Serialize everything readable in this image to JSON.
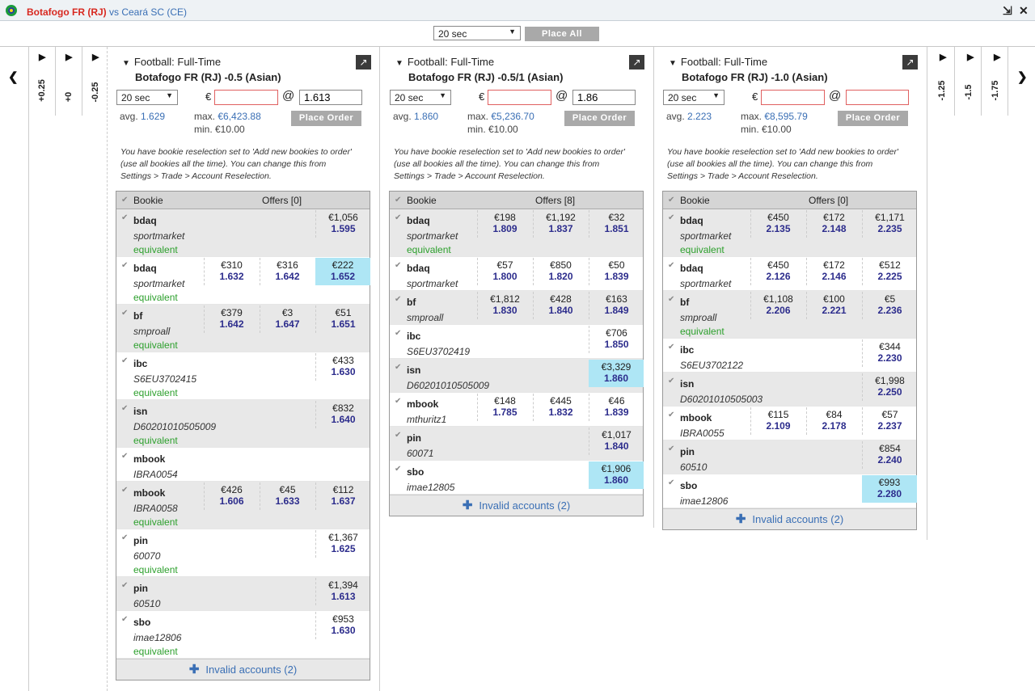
{
  "window": {
    "home_team": "Botafogo FR (RJ)",
    "vs": "vs",
    "away_team": "Ceará SC (CE)"
  },
  "topbar": {
    "interval": "20 sec",
    "place_all": "Place All"
  },
  "left_strip": [
    "+0.25",
    "+0",
    "-0.25"
  ],
  "right_strip": [
    "-1.25",
    "-1.5",
    "-1.75"
  ],
  "panels": [
    {
      "market": "Football: Full-Time",
      "selection": "Botafogo FR (RJ) -0.5 (Asian)",
      "interval": "20 sec",
      "stake": "",
      "odds": "1.613",
      "avg_label": "avg.",
      "avg": "1.629",
      "max_label": "max.",
      "max": "€6,423.88",
      "min": "min. €10.00",
      "place_order": "Place Order",
      "note": [
        "You have bookie reselection set to 'Add new bookies to order'",
        "(use all bookies all the time).  You can change this from",
        "Settings > Trade > Account Reselection."
      ],
      "col_bookie": "Bookie",
      "col_offers": "Offers [0]",
      "invalid": "Invalid accounts (2)",
      "rows": [
        {
          "name": "bdaq",
          "acct": "sportmarket",
          "eq": "equivalent",
          "cells": [
            null,
            null,
            {
              "s": "€1,056",
              "o": "1.595"
            }
          ]
        },
        {
          "name": "bdaq",
          "acct": "sportmarket",
          "eq": "equivalent",
          "cells": [
            {
              "s": "€310",
              "o": "1.632"
            },
            {
              "s": "€316",
              "o": "1.642"
            },
            {
              "s": "€222",
              "o": "1.652",
              "hl": true
            }
          ]
        },
        {
          "name": "bf",
          "acct": "smproall",
          "eq": "equivalent",
          "cells": [
            {
              "s": "€379",
              "o": "1.642"
            },
            {
              "s": "€3",
              "o": "1.647"
            },
            {
              "s": "€51",
              "o": "1.651"
            }
          ]
        },
        {
          "name": "ibc",
          "acct": "S6EU3702415",
          "eq": "equivalent",
          "cells": [
            null,
            null,
            {
              "s": "€433",
              "o": "1.630"
            }
          ]
        },
        {
          "name": "isn",
          "acct": "D60201010505009",
          "eq": "equivalent",
          "cells": [
            null,
            null,
            {
              "s": "€832",
              "o": "1.640"
            }
          ]
        },
        {
          "name": "mbook",
          "acct": "IBRA0054",
          "eq": "",
          "cells": [
            null,
            null,
            null
          ]
        },
        {
          "name": "mbook",
          "acct": "IBRA0058",
          "eq": "equivalent",
          "cells": [
            {
              "s": "€426",
              "o": "1.606"
            },
            {
              "s": "€45",
              "o": "1.633"
            },
            {
              "s": "€112",
              "o": "1.637"
            }
          ]
        },
        {
          "name": "pin",
          "acct": "60070",
          "eq": "equivalent",
          "cells": [
            null,
            null,
            {
              "s": "€1,367",
              "o": "1.625"
            }
          ]
        },
        {
          "name": "pin",
          "acct": "60510",
          "eq": "",
          "cells": [
            null,
            null,
            {
              "s": "€1,394",
              "o": "1.613"
            }
          ]
        },
        {
          "name": "sbo",
          "acct": "imae12806",
          "eq": "equivalent",
          "cells": [
            null,
            null,
            {
              "s": "€953",
              "o": "1.630"
            }
          ]
        }
      ]
    },
    {
      "market": "Football: Full-Time",
      "selection": "Botafogo FR (RJ) -0.5/1 (Asian)",
      "interval": "20 sec",
      "stake": "",
      "odds": "1.86",
      "avg_label": "avg.",
      "avg": "1.860",
      "max_label": "max.",
      "max": "€5,236.70",
      "min": "min. €10.00",
      "place_order": "Place Order",
      "note": [
        "You have bookie reselection set to 'Add new bookies to order'",
        "(use all bookies all the time).  You can change this from",
        "Settings > Trade > Account Reselection."
      ],
      "col_bookie": "Bookie",
      "col_offers": "Offers [8]",
      "invalid": "Invalid accounts (2)",
      "rows": [
        {
          "name": "bdaq",
          "acct": "sportmarket",
          "eq": "equivalent",
          "cells": [
            {
              "s": "€198",
              "o": "1.809"
            },
            {
              "s": "€1,192",
              "o": "1.837"
            },
            {
              "s": "€32",
              "o": "1.851"
            }
          ]
        },
        {
          "name": "bdaq",
          "acct": "sportmarket",
          "eq": "",
          "cells": [
            {
              "s": "€57",
              "o": "1.800"
            },
            {
              "s": "€850",
              "o": "1.820"
            },
            {
              "s": "€50",
              "o": "1.839"
            }
          ]
        },
        {
          "name": "bf",
          "acct": "smproall",
          "eq": "",
          "cells": [
            {
              "s": "€1,812",
              "o": "1.830"
            },
            {
              "s": "€428",
              "o": "1.840"
            },
            {
              "s": "€163",
              "o": "1.849"
            }
          ]
        },
        {
          "name": "ibc",
          "acct": "S6EU3702419",
          "eq": "",
          "cells": [
            null,
            null,
            {
              "s": "€706",
              "o": "1.850"
            }
          ]
        },
        {
          "name": "isn",
          "acct": "D60201010505009",
          "eq": "",
          "cells": [
            null,
            null,
            {
              "s": "€3,329",
              "o": "1.860",
              "hl": true
            }
          ]
        },
        {
          "name": "mbook",
          "acct": "mthuritz1",
          "eq": "",
          "cells": [
            {
              "s": "€148",
              "o": "1.785"
            },
            {
              "s": "€445",
              "o": "1.832"
            },
            {
              "s": "€46",
              "o": "1.839"
            }
          ]
        },
        {
          "name": "pin",
          "acct": "60071",
          "eq": "",
          "cells": [
            null,
            null,
            {
              "s": "€1,017",
              "o": "1.840"
            }
          ]
        },
        {
          "name": "sbo",
          "acct": "imae12805",
          "eq": "",
          "cells": [
            null,
            null,
            {
              "s": "€1,906",
              "o": "1.860",
              "hl": true
            }
          ]
        }
      ]
    },
    {
      "market": "Football: Full-Time",
      "selection": "Botafogo FR (RJ) -1.0 (Asian)",
      "interval": "20 sec",
      "stake": "",
      "odds": "",
      "avg_label": "avg.",
      "avg": "2.223",
      "max_label": "max.",
      "max": "€8,595.79",
      "min": "min. €10.00",
      "place_order": "Place Order",
      "note": [
        "You have bookie reselection set to 'Add new bookies to order'",
        "(use all bookies all the time).  You can change this from",
        "Settings > Trade > Account Reselection."
      ],
      "col_bookie": "Bookie",
      "col_offers": "Offers [0]",
      "invalid": "Invalid accounts (2)",
      "rows": [
        {
          "name": "bdaq",
          "acct": "sportmarket",
          "eq": "equivalent",
          "cells": [
            {
              "s": "€450",
              "o": "2.135"
            },
            {
              "s": "€172",
              "o": "2.148"
            },
            {
              "s": "€1,171",
              "o": "2.235"
            }
          ]
        },
        {
          "name": "bdaq",
          "acct": "sportmarket",
          "eq": "",
          "cells": [
            {
              "s": "€450",
              "o": "2.126"
            },
            {
              "s": "€172",
              "o": "2.146"
            },
            {
              "s": "€512",
              "o": "2.225"
            }
          ]
        },
        {
          "name": "bf",
          "acct": "smproall",
          "eq": "equivalent",
          "cells": [
            {
              "s": "€1,108",
              "o": "2.206"
            },
            {
              "s": "€100",
              "o": "2.221"
            },
            {
              "s": "€5",
              "o": "2.236"
            }
          ]
        },
        {
          "name": "ibc",
          "acct": "S6EU3702122",
          "eq": "",
          "cells": [
            null,
            null,
            {
              "s": "€344",
              "o": "2.230"
            }
          ]
        },
        {
          "name": "isn",
          "acct": "D60201010505003",
          "eq": "",
          "cells": [
            null,
            null,
            {
              "s": "€1,998",
              "o": "2.250"
            }
          ]
        },
        {
          "name": "mbook",
          "acct": "IBRA0055",
          "eq": "",
          "cells": [
            {
              "s": "€115",
              "o": "2.109"
            },
            {
              "s": "€84",
              "o": "2.178"
            },
            {
              "s": "€57",
              "o": "2.237"
            }
          ]
        },
        {
          "name": "pin",
          "acct": "60510",
          "eq": "",
          "cells": [
            null,
            null,
            {
              "s": "€854",
              "o": "2.240"
            }
          ]
        },
        {
          "name": "sbo",
          "acct": "imae12806",
          "eq": "",
          "cells": [
            null,
            null,
            {
              "s": "€993",
              "o": "2.280",
              "hl": true
            }
          ]
        }
      ]
    }
  ]
}
